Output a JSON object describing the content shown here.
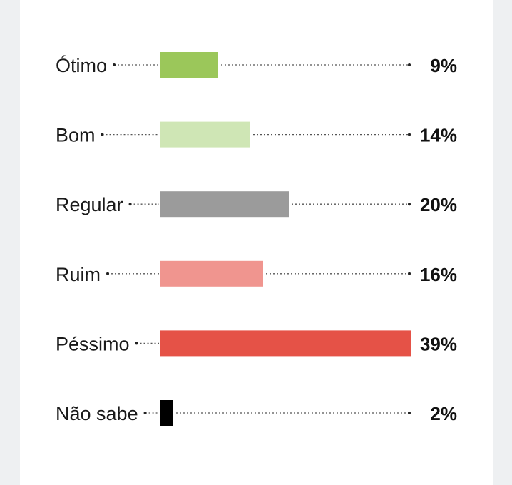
{
  "chart_data": {
    "type": "bar",
    "orientation": "horizontal",
    "categories": [
      "Ótimo",
      "Bom",
      "Regular",
      "Ruim",
      "Péssimo",
      "Não sabe"
    ],
    "values": [
      9,
      14,
      20,
      16,
      39,
      2
    ],
    "value_labels": [
      "9%",
      "14%",
      "20%",
      "16%",
      "39%",
      "2%"
    ],
    "colors": [
      "#9bc75a",
      "#cfe6b5",
      "#9b9b9b",
      "#f0958f",
      "#e55247",
      "#000000"
    ],
    "xlim": [
      0,
      39
    ],
    "grid": false,
    "legend": "none",
    "title": "",
    "xlabel": "",
    "ylabel": ""
  }
}
